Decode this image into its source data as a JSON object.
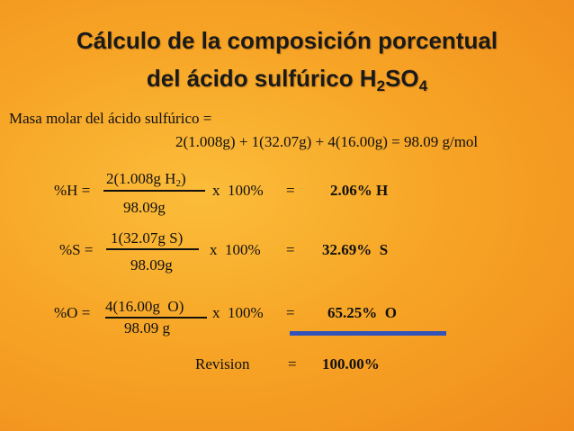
{
  "title": {
    "line1": "Cálculo de la composición porcentual",
    "line2": "del ácido sulfúrico H",
    "sub1": "2",
    "mid": "SO",
    "sub2": "4"
  },
  "molar": {
    "label": "Masa molar del ácido sulfúrico =",
    "formula": "2(1.008g) + 1(32.07g) + 4(16.00g) = 98.09 g/mol"
  },
  "rows": [
    {
      "lhs": "%H =",
      "num": "2(1.008g H",
      "num_sub": "2",
      "num_end": ")",
      "den": "98.09g",
      "times": "x  100%",
      "eq": "=",
      "result": "2.06% H"
    },
    {
      "lhs": "%S =",
      "num": "1(32.07g S)",
      "den": "98.09g",
      "times": "x  100%",
      "eq": "=",
      "result": "32.69%  S"
    },
    {
      "lhs": "%O =",
      "num": "4(16.00g  O)",
      "den": "98.09 g",
      "times": "x  100%",
      "eq": "=",
      "result": "65.25%  O"
    }
  ],
  "revision": {
    "label": "Revision",
    "eq": "=",
    "value": "100.00%"
  }
}
